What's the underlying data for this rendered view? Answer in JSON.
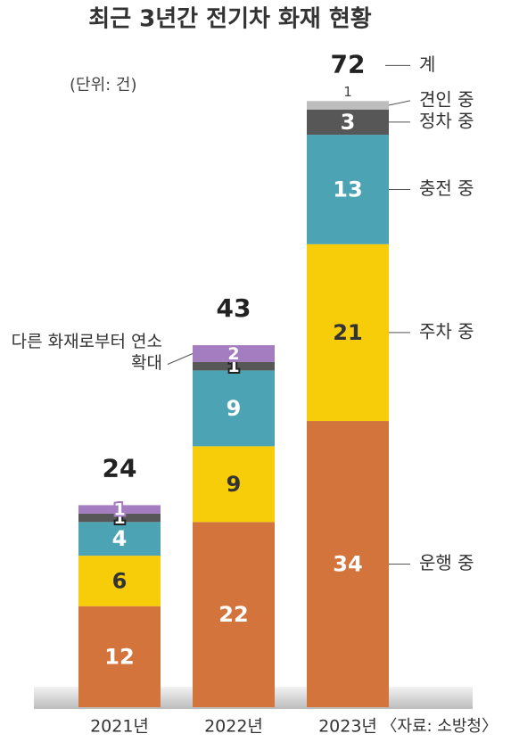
{
  "chart_data": {
    "type": "stacked_bar",
    "title": "최근 3년간 전기차 화재 현황",
    "unit_note": "(단위: 건)",
    "source": "〈자료: 소방청〉",
    "categories": [
      "2021년",
      "2022년",
      "2023년"
    ],
    "totals": [
      24,
      43,
      72
    ],
    "total_label": "계",
    "series": [
      {
        "name": "운행 중",
        "color": "#d2743b",
        "values": [
          12,
          22,
          34
        ]
      },
      {
        "name": "주차 중",
        "color": "#f7cd0a",
        "values": [
          6,
          9,
          21
        ]
      },
      {
        "name": "충전 중",
        "color": "#4ba3b4",
        "values": [
          4,
          9,
          13
        ]
      },
      {
        "name": "정차 중",
        "color": "#575757",
        "values": [
          1,
          1,
          3
        ]
      },
      {
        "name": "견인 중",
        "color": "#bdbdbd",
        "values": [
          null,
          null,
          1
        ]
      },
      {
        "name": "다른 화재로부터 연소 확대",
        "color": "#a47cc0",
        "values": [
          1,
          2,
          null
        ]
      }
    ]
  }
}
